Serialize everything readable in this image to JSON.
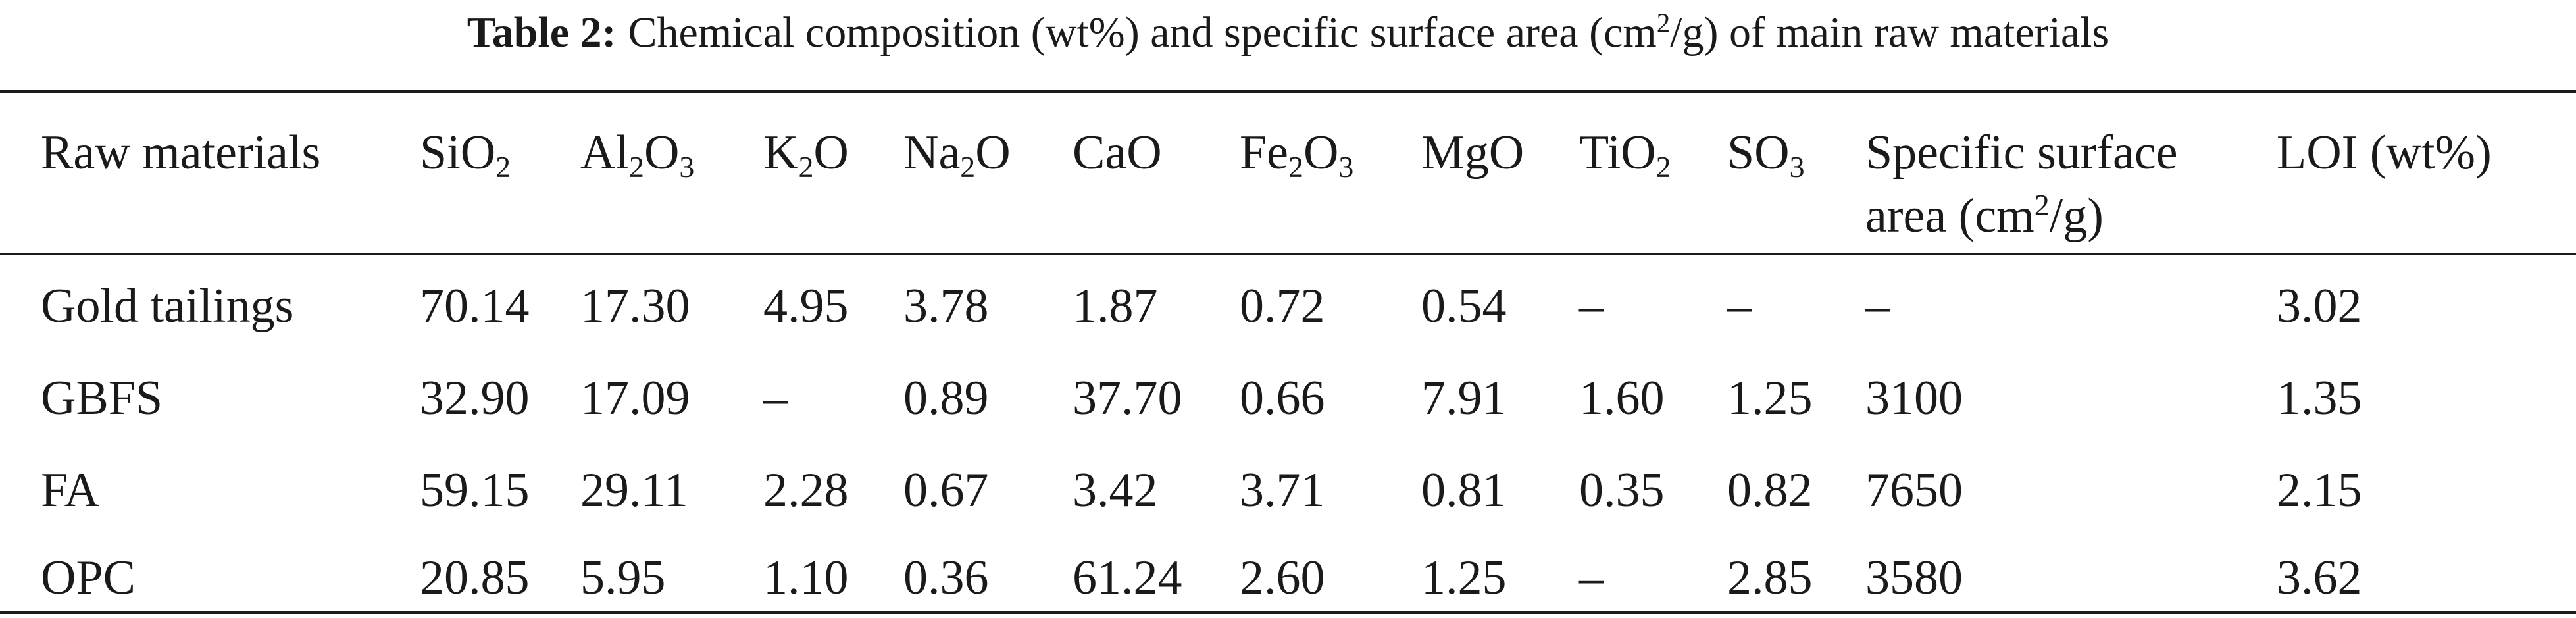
{
  "caption": {
    "label": "Table 2:",
    "text_before": "Chemical composition (wt%) and specific surface area (cm",
    "sup": "2",
    "text_after": "/g) of main raw materials"
  },
  "headers": [
    {
      "text": "Raw materials"
    },
    {
      "text": "SiO",
      "sub": "2"
    },
    {
      "text": "Al",
      "sub": "2",
      "text2": "O",
      "sub2": "3"
    },
    {
      "text": "K",
      "sub": "2",
      "text2": "O"
    },
    {
      "text": "Na",
      "sub": "2",
      "text2": "O"
    },
    {
      "text": "CaO"
    },
    {
      "text": "Fe",
      "sub": "2",
      "text2": "O",
      "sub2": "3"
    },
    {
      "text": "MgO"
    },
    {
      "text": "TiO",
      "sub": "2"
    },
    {
      "text": "SO",
      "sub": "3"
    },
    {
      "text": "Specific surface",
      "line2_before": "area (cm",
      "line2_sup": "2",
      "line2_after": "/g)"
    },
    {
      "text": "LOI (wt%)"
    }
  ],
  "rows": [
    {
      "cells": [
        "Gold tailings",
        "70.14",
        "17.30",
        "4.95",
        "3.78",
        "1.87",
        "0.72",
        "0.54",
        "–",
        "–",
        "–",
        "3.02"
      ]
    },
    {
      "cells": [
        "GBFS",
        "32.90",
        "17.09",
        "–",
        "0.89",
        "37.70",
        "0.66",
        "7.91",
        "1.60",
        "1.25",
        "3100",
        "1.35"
      ]
    },
    {
      "cells": [
        "FA",
        "59.15",
        "29.11",
        "2.28",
        "0.67",
        "3.42",
        "3.71",
        "0.81",
        "0.35",
        "0.82",
        "7650",
        "2.15"
      ]
    },
    {
      "cells": [
        "OPC",
        "20.85",
        "5.95",
        "1.10",
        "0.36",
        "61.24",
        "2.60",
        "1.25",
        "–",
        "2.85",
        "3580",
        "3.62"
      ]
    }
  ]
}
